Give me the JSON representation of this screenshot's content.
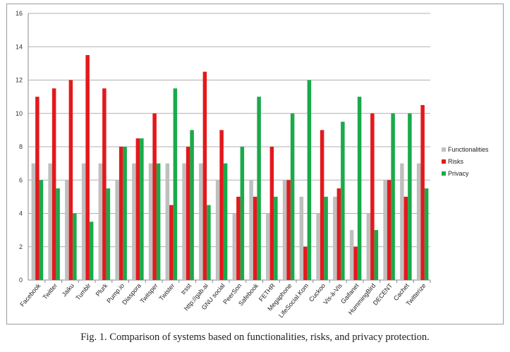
{
  "caption": "Fig. 1.  Comparison of systems based on functionalities, risks, and privacy protection.",
  "chart_data": {
    "type": "bar",
    "title": "",
    "xlabel": "",
    "ylabel": "",
    "ylim": [
      0,
      16
    ],
    "yticks": [
      0,
      2,
      4,
      6,
      8,
      10,
      12,
      14,
      16
    ],
    "grid": true,
    "legend_position": "right",
    "categories": [
      "Facebook",
      "Twitter",
      "Jaiku",
      "Tumblr",
      "Plurk",
      "Pump.io",
      "Diaspora",
      "Twitsper",
      "Twister",
      "trsst",
      "http://gab.ai",
      "GNU social",
      "PeerSon",
      "Safebook",
      "FETHR",
      "Megaphone",
      "LifeSocial.Kom",
      "Cuckoo",
      "Vis-à-Vis",
      "Gaifanet",
      "HummingBird",
      "DECENT",
      "Cachet",
      "Twitterize"
    ],
    "series": [
      {
        "name": "Functionalities",
        "color": "#bfbfbf",
        "values": [
          7,
          7,
          6,
          7,
          7,
          6,
          7,
          7,
          7,
          7,
          7,
          6,
          4,
          6,
          4,
          6,
          5,
          4,
          5,
          3,
          4,
          6,
          7,
          7
        ]
      },
      {
        "name": "Risks",
        "color": "#e3191c",
        "values": [
          11,
          11.5,
          12,
          13.5,
          11.5,
          8,
          8.5,
          10,
          4.5,
          8,
          12.5,
          9,
          5,
          5,
          8,
          6,
          2,
          9,
          5.5,
          2,
          10,
          6,
          5,
          10.5
        ]
      },
      {
        "name": "Privacy",
        "color": "#1aaa4a",
        "values": [
          6,
          5.5,
          4,
          3.5,
          5.5,
          8,
          8.5,
          7,
          11.5,
          9,
          4.5,
          7,
          8,
          11,
          5,
          10,
          12,
          5,
          9.5,
          11,
          3,
          10,
          10,
          5.5
        ]
      }
    ]
  }
}
